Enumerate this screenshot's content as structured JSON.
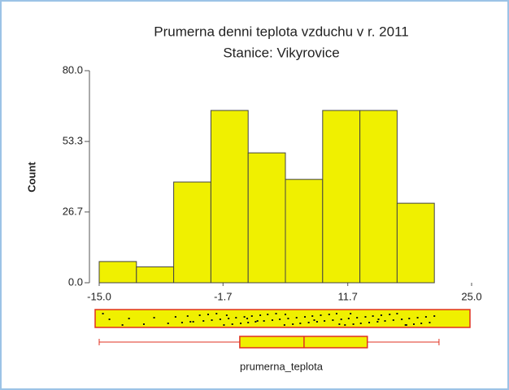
{
  "chart_data": {
    "type": "histogram",
    "title": "Prumerna denni teplota vzduchu v r. 2011",
    "subtitle": "Stanice: Vikyrovice",
    "ylabel": "Count",
    "xlabel": "prumerna_teplota",
    "bins": [
      -15,
      -11,
      -7,
      -3,
      1,
      5,
      9,
      13,
      17,
      21
    ],
    "counts": [
      8,
      6,
      38,
      65,
      49,
      39,
      65,
      65,
      30
    ],
    "color": "#f0f000",
    "xlim": [
      -15,
      25
    ],
    "ylim": [
      0,
      80
    ],
    "xticks": [
      {
        "value": -15,
        "label": "-15.0"
      },
      -1.7,
      11.7,
      {
        "value": 25,
        "label": "25.0"
      }
    ],
    "yticks": [
      {
        "value": 0,
        "label": "0.0"
      },
      26.7,
      53.3,
      {
        "value": 80,
        "label": "80.0"
      }
    ],
    "dots": [
      -14.6,
      -13.9,
      -12.5,
      -11.8,
      -10.2,
      -9.1,
      -7.6,
      -6.8,
      -6.1,
      -5.5,
      -4.9,
      -4.2,
      -3.8,
      -3.3,
      -2.9,
      -2.4,
      -2.0,
      -1.6,
      -1.1,
      -0.7,
      -0.3,
      0.2,
      0.6,
      1.0,
      1.4,
      1.8,
      2.3,
      2.7,
      3.1,
      3.6,
      4.0,
      4.4,
      4.9,
      5.3,
      5.8,
      6.2,
      6.6,
      7.1,
      7.5,
      7.9,
      8.4,
      8.8,
      9.2,
      9.7,
      10.1,
      10.5,
      11.0,
      11.4,
      11.8,
      12.3,
      12.7,
      13.1,
      13.6,
      14.0,
      14.4,
      14.9,
      15.3,
      15.7,
      16.2,
      16.6,
      17.0,
      17.5,
      17.9,
      18.3,
      18.8,
      19.2,
      19.6,
      20.1,
      20.5,
      21.0,
      -5.2,
      -1.3,
      2.0,
      5.0,
      8.1,
      12.0,
      15.0,
      18.0,
      0.9,
      10.8
    ],
    "boxplot": {
      "min": -15.0,
      "q1": 0.1,
      "median": 7.0,
      "q3": 13.8,
      "max": 21.5
    }
  }
}
